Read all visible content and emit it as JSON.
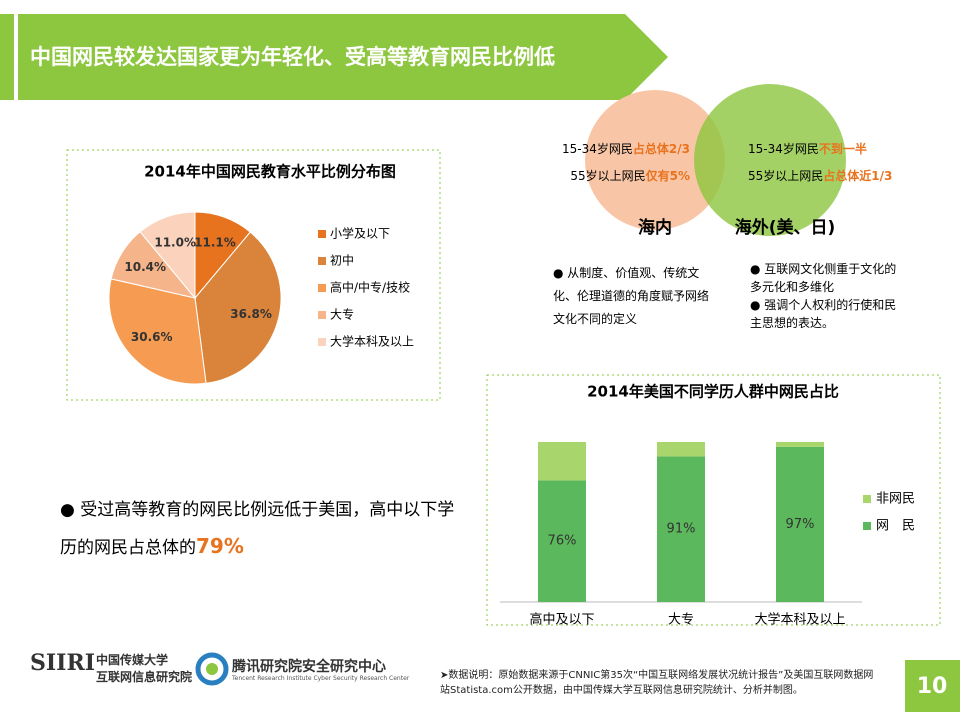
{
  "header": {
    "title": "中国网民较发达国家更为年轻化、受高等教育网民比例低"
  },
  "chart_data": [
    {
      "type": "pie",
      "title": "2014年中国网民教育水平比例分布图",
      "categories": [
        "小学及以下",
        "初中",
        "高中/中专/技校",
        "大专",
        "大学本科及以上"
      ],
      "values": [
        11.1,
        36.8,
        30.6,
        10.4,
        11.0
      ],
      "value_labels": [
        "11.1%",
        "36.8%",
        "30.6%",
        "10.4%",
        "11.0%"
      ],
      "colors": [
        "#e8731f",
        "#d9843a",
        "#f59c52",
        "#f5b48a",
        "#fbd3bd"
      ],
      "legend": "right"
    },
    {
      "type": "stacked_bar",
      "title": "2014年美国不同学历人群中网民占比",
      "categories": [
        "高中及以下",
        "大专",
        "大学本科及以上"
      ],
      "ylim": [
        0,
        100
      ],
      "series": [
        {
          "name": "网　民",
          "color": "#5cb85c",
          "values": [
            76,
            91,
            97
          ],
          "value_labels": [
            "76%",
            "91%",
            "97%"
          ]
        },
        {
          "name": "非网民",
          "color": "#a9d66c",
          "values": [
            24,
            9,
            3
          ]
        }
      ],
      "legend": "right"
    }
  ],
  "venn": {
    "left": {
      "label": "海内",
      "lines": [
        [
          "15-34岁网民",
          "占总体2/3"
        ],
        [
          "55岁以上网民",
          "仅有5%"
        ]
      ]
    },
    "right": {
      "label": "海外(美、日)",
      "lines": [
        [
          "15-34岁网民",
          "不到一半"
        ],
        [
          "55岁以上网民",
          "占总体近1/3"
        ]
      ]
    }
  },
  "bullets_left": [
    "● 从制度、价值观、传统文化、伦理道德的角度赋予网络文化不同的定义"
  ],
  "bullets_right": [
    "● 互联网文化侧重于文化的多元化和多维化",
    "● 强调个人权利的行使和民主思想的表达。"
  ],
  "summary": {
    "text": "● 受过高等教育的网民比例远低于美国，高中以下学历的网民占总体的",
    "highlight": "79%"
  },
  "footer": {
    "logo1": "SIIRI",
    "logo1_org1": "中国传媒大学",
    "logo1_org2": "互联网信息研究院",
    "logo2": "腾讯研究院安全研究中心",
    "logo2_en": "Tencent Research Institute Cyber Security Research Center",
    "note": "➤数据说明：原始数据来源于CNNIC第35次“中国互联网络发展状况统计报告”及美国互联网数据网站Statista.com公开数据，由中国传媒大学互联网信息研究院统计、分析并制图。",
    "page": "10"
  }
}
